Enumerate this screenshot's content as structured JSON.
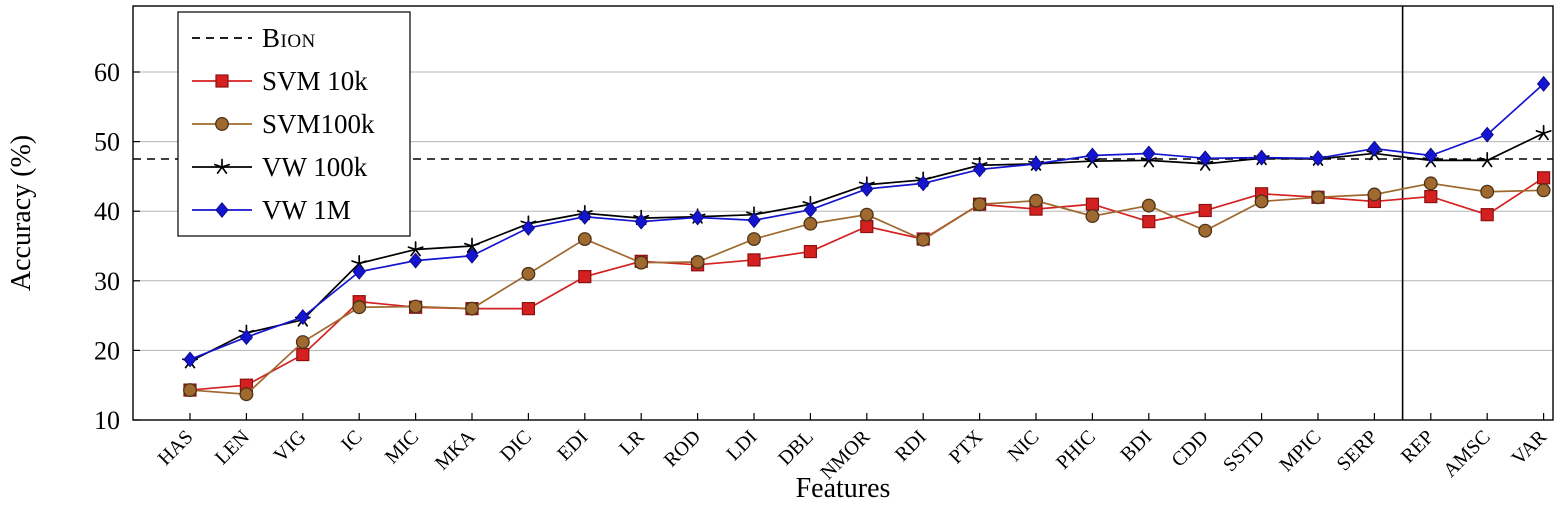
{
  "chart_data": {
    "type": "line",
    "title": "",
    "xlabel": "Features",
    "ylabel": "Accuracy (%)",
    "ylim": [
      10,
      66
    ],
    "yticks": [
      10,
      20,
      30,
      40,
      50,
      60
    ],
    "grid": "horizontal",
    "legend_position": "top-left",
    "categories": [
      "HAS",
      "LEN",
      "VIG",
      "IC",
      "MIC",
      "MKA",
      "DIC",
      "EDI",
      "LR",
      "ROD",
      "LDI",
      "DBL",
      "NMOR",
      "RDI",
      "PTX",
      "NIC",
      "PHIC",
      "BDI",
      "CDD",
      "SSTD",
      "MPIC",
      "SERP",
      "REP",
      "AMSC",
      "VAR"
    ],
    "baseline": {
      "label": "Bion",
      "value": 47.5,
      "style": "dashed",
      "color": "#000000"
    },
    "divider_after_index": 21,
    "series": [
      {
        "name": "SVM 10k",
        "marker": "square",
        "color": "#d42020",
        "edge": "#8c1010",
        "values": [
          14.3,
          15.0,
          19.4,
          27.0,
          26.2,
          26.0,
          26.0,
          30.6,
          32.8,
          32.3,
          33.0,
          34.2,
          37.8,
          36.0,
          41.0,
          40.3,
          41.0,
          38.5,
          40.1,
          42.5,
          42.0,
          41.4,
          42.1,
          39.5,
          44.8
        ]
      },
      {
        "name": "SVM100k",
        "marker": "circle",
        "color": "#a0692f",
        "edge": "#4a3318",
        "values": [
          14.3,
          13.7,
          21.2,
          26.2,
          26.3,
          26.0,
          31.0,
          36.0,
          32.6,
          32.7,
          36.0,
          38.2,
          39.5,
          35.9,
          41.0,
          41.5,
          39.3,
          40.8,
          37.2,
          41.4,
          42.0,
          42.4,
          44.0,
          42.8,
          43.0
        ]
      },
      {
        "name": "VW 100k",
        "marker": "star",
        "color": "#000000",
        "edge": "#000000",
        "values": [
          18.4,
          22.5,
          24.4,
          32.5,
          34.5,
          35.0,
          38.2,
          39.7,
          39.0,
          39.2,
          39.5,
          41.0,
          43.8,
          44.5,
          46.6,
          46.8,
          47.2,
          47.3,
          46.8,
          47.6,
          47.5,
          48.3,
          47.3,
          47.3,
          51.2
        ]
      },
      {
        "name": "VW 1M",
        "marker": "diamond",
        "color": "#1515d0",
        "edge": "#0d0d8c",
        "values": [
          18.7,
          21.9,
          24.8,
          31.3,
          32.9,
          33.6,
          37.6,
          39.2,
          38.5,
          39.1,
          38.7,
          40.2,
          43.2,
          44.0,
          46.0,
          46.8,
          48.0,
          48.3,
          47.6,
          47.7,
          47.6,
          49.0,
          48.0,
          51.0,
          58.3
        ]
      }
    ]
  }
}
